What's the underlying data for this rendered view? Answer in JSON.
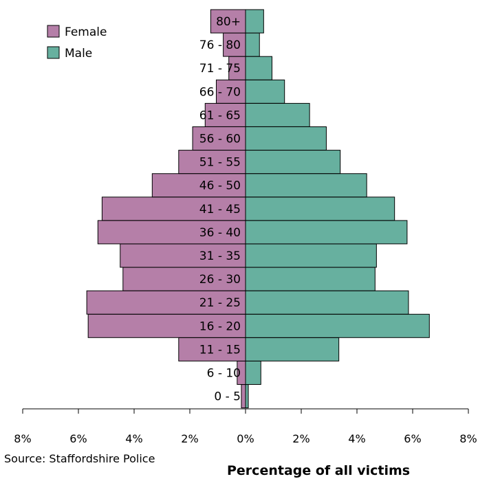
{
  "chart_data": {
    "type": "bar",
    "orientation": "horizontal",
    "categories": [
      "0 - 5",
      "6 - 10",
      "11 - 15",
      "16 - 20",
      "21 - 25",
      "26 - 30",
      "31 - 35",
      "36 - 40",
      "41 - 45",
      "46 - 50",
      "51 - 55",
      "56 - 60",
      "61 - 65",
      "66 - 70",
      "71 - 75",
      "76 - 80",
      "80+"
    ],
    "series": [
      {
        "name": "Female",
        "color": "#b57fa8",
        "values": [
          0.15,
          0.3,
          2.4,
          5.65,
          5.7,
          4.4,
          4.5,
          5.3,
          5.15,
          3.35,
          2.4,
          1.9,
          1.45,
          1.05,
          0.6,
          0.8,
          1.25
        ]
      },
      {
        "name": "Male",
        "color": "#67b09f",
        "values": [
          0.1,
          0.55,
          3.35,
          6.6,
          5.85,
          4.65,
          4.7,
          5.8,
          5.35,
          4.35,
          3.4,
          2.9,
          2.3,
          1.4,
          0.95,
          0.5,
          0.65
        ]
      }
    ],
    "xlim": [
      -8,
      8
    ],
    "xticks": [
      "8%",
      "6%",
      "4%",
      "2%",
      "0%",
      "2%",
      "4%",
      "6%",
      "8%"
    ],
    "xlabel": "Percentage of all victims",
    "legend": "top-left",
    "grid": false
  },
  "source": "Source: Staffordshire Police"
}
